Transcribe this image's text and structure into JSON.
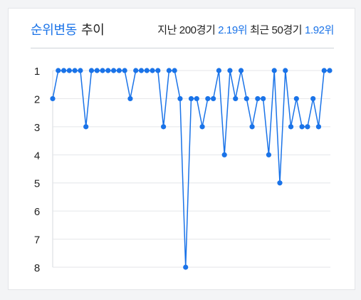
{
  "header": {
    "title_accent": "순위변동",
    "title_plain": "추이",
    "last_label": "지난 200경기",
    "last_value": "2.19위",
    "recent_label": "최근 50경기",
    "recent_value": "1.92위"
  },
  "colors": {
    "accent": "#1a73e8",
    "line": "#1a73e8",
    "grid": "#e4e6ea"
  },
  "chart_data": {
    "type": "line",
    "title": "",
    "xlabel": "",
    "ylabel": "",
    "y_inverted": true,
    "ylim": [
      1,
      8
    ],
    "yticks": [
      "1",
      "2",
      "3",
      "4",
      "5",
      "6",
      "7",
      "8"
    ],
    "grid": true,
    "series": [
      {
        "values": [
          2,
          1,
          1,
          1,
          1,
          1,
          3,
          1,
          1,
          1,
          1,
          1,
          1,
          1,
          2,
          1,
          1,
          1,
          1,
          1,
          3,
          1,
          1,
          2,
          8,
          2,
          2,
          3,
          2,
          2,
          1,
          4,
          1,
          2,
          1,
          2,
          3,
          2,
          2,
          4,
          1,
          5,
          1,
          3,
          2,
          3,
          3,
          2,
          3,
          1,
          1
        ]
      }
    ]
  }
}
